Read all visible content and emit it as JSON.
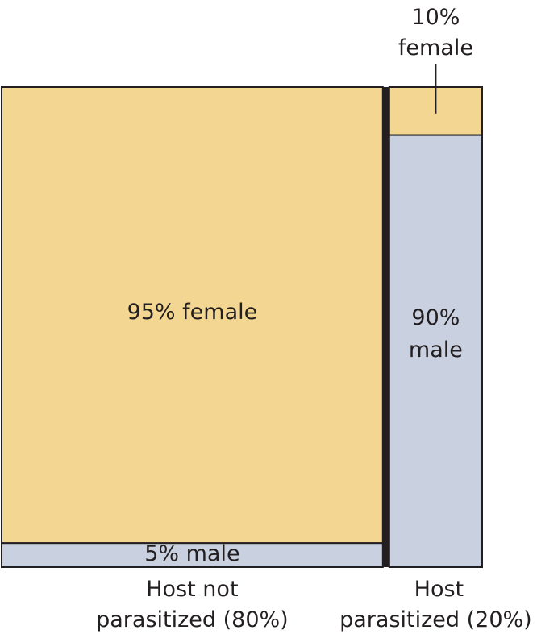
{
  "chart_data": {
    "type": "mosaic",
    "title": "",
    "colors": {
      "female": "#f2d692",
      "male": "#c9d1e1",
      "outline": "#231f20"
    },
    "columns": [
      {
        "name": "Host not parasitized",
        "label_line1": "Host not",
        "label_line2": "parasitized (80%)",
        "share": 0.8,
        "segments": [
          {
            "category": "female",
            "value": 0.95,
            "label": "95% female"
          },
          {
            "category": "male",
            "value": 0.05,
            "label": "5% male"
          }
        ]
      },
      {
        "name": "Host parasitized",
        "label_line1": "Host",
        "label_line2": "parasitized  (20%)",
        "share": 0.2,
        "segments": [
          {
            "category": "female",
            "value": 0.1,
            "label_line1": "10%",
            "label_line2": "female"
          },
          {
            "category": "male",
            "value": 0.9,
            "label_line1": "90%",
            "label_line2": "male"
          }
        ]
      }
    ]
  }
}
